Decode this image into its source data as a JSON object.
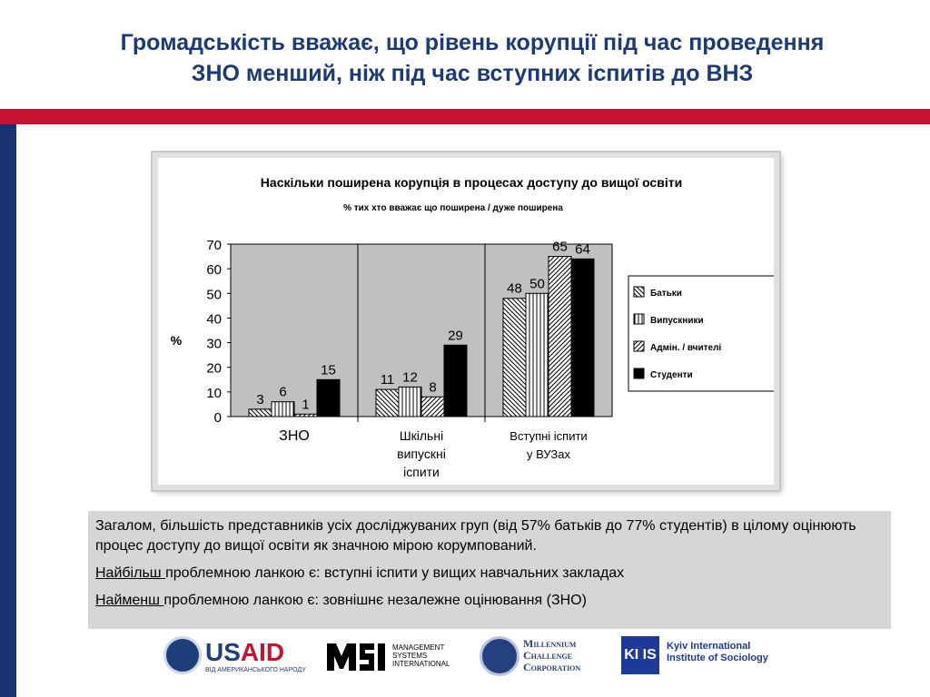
{
  "slide": {
    "title_line1": "Громадськість вважає, що рівень корупції під час проведення",
    "title_line2": "ЗНО менший, ніж під час вступних іспитів до ВНЗ"
  },
  "chart_data": {
    "type": "bar",
    "title": "Наскільки поширена корупція в процесах доступу до вищої освіти",
    "subtitle": "% тих хто вважає що поширена / дуже поширена",
    "ylabel": "%",
    "ylim": [
      0,
      70
    ],
    "yticks": [
      "0",
      "10",
      "20",
      "30",
      "40",
      "50",
      "60",
      "70"
    ],
    "categories": [
      [
        "ЗНО"
      ],
      [
        "Шкільні",
        "випускні",
        "іспити"
      ],
      [
        "Вступні іспити",
        "у ВУЗах"
      ]
    ],
    "series": [
      {
        "name": "Батьки",
        "pattern": "backslash",
        "values": [
          3,
          11,
          48
        ]
      },
      {
        "name": "Випускники",
        "pattern": "vertical",
        "values": [
          6,
          12,
          50
        ]
      },
      {
        "name": "Адмін. / вчителі",
        "pattern": "slash",
        "values": [
          1,
          8,
          65
        ]
      },
      {
        "name": "Студенти",
        "pattern": "solid",
        "values": [
          15,
          29,
          64
        ]
      }
    ],
    "legend_position": "right",
    "grid": false,
    "plot_background": "#c0c0c0"
  },
  "summary": {
    "paragraph1": "Загалом, більшість представників усіх досліджуваних груп (від 57% батьків до 77% студентів) в цілому оцінюють  процес доступу до вищої освіти як значною мірою корумпований.",
    "most_label": "Найбільш ",
    "most_text": "проблемною ланкою є: вступні іспити у вищих навчальних закладах",
    "least_label": "Найменш ",
    "least_text": "проблемною ланкою є: зовнішнє незалежне оцінювання (ЗНО)"
  },
  "logos": {
    "usaid_us": "US",
    "usaid_aid": "AID",
    "usaid_sub": "ВІД АМЕРИКАНСЬКОГО НАРОДУ",
    "msi_line1": "MANAGEMENT",
    "msi_line2": "SYSTEMS",
    "msi_line3": "INTERNATIONAL",
    "mcc_line1": "Millennium",
    "mcc_line2": "Challenge",
    "mcc_line3": "Corporation",
    "kiis_mark": "KI IS",
    "kiis_line1": "Kyiv International",
    "kiis_line2": "Institute of Sociology"
  },
  "colors": {
    "title_blue": "#1b3a7a",
    "accent_red": "#c4122f",
    "left_bar_blue": "#1a3270",
    "summary_bg": "#d6d6d6"
  }
}
